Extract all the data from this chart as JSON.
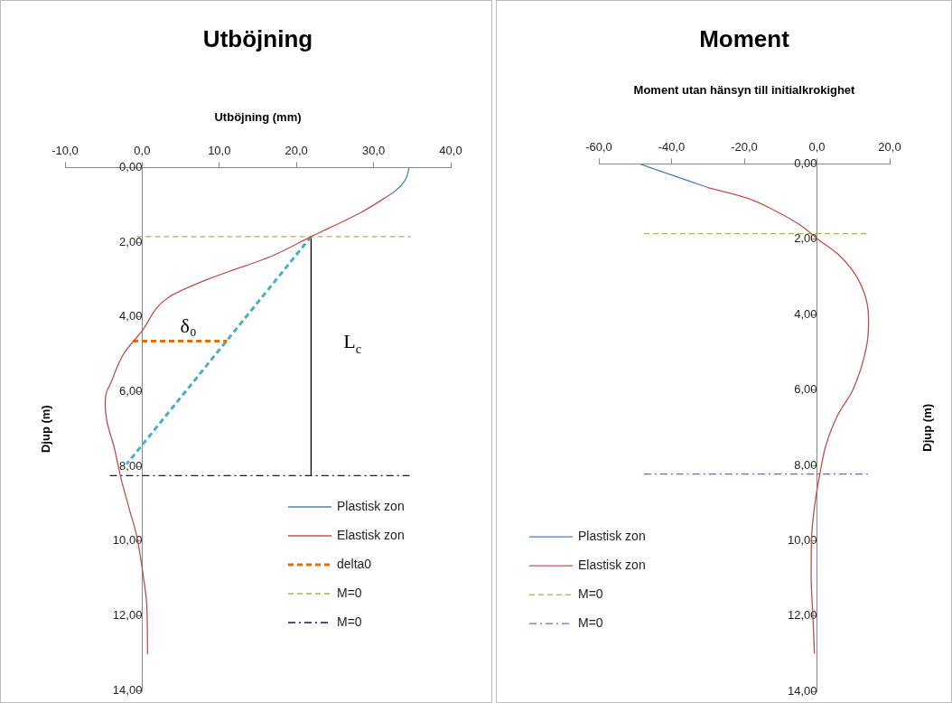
{
  "chart_data": [
    {
      "type": "line",
      "title": "Utböjning",
      "xlabel": "Utböjning (mm)",
      "ylabel": "Djup (m)",
      "xlim": [
        -10,
        40
      ],
      "xticks": [
        {
          "value": -10,
          "label": "-10,0"
        },
        {
          "value": 0,
          "label": "0,0"
        },
        {
          "value": 10,
          "label": "10,0"
        },
        {
          "value": 20,
          "label": "20,0"
        },
        {
          "value": 30,
          "label": "30,0"
        },
        {
          "value": 40,
          "label": "40,0"
        }
      ],
      "ylim": [
        14,
        0
      ],
      "yticks": [
        {
          "value": 0,
          "label": "0,00"
        },
        {
          "value": 2,
          "label": "2,00"
        },
        {
          "value": 4,
          "label": "4,00"
        },
        {
          "value": 6,
          "label": "6,00"
        },
        {
          "value": 8,
          "label": "8,00"
        },
        {
          "value": 10,
          "label": "10,00"
        },
        {
          "value": 12,
          "label": "12,00"
        },
        {
          "value": 14,
          "label": "14,00"
        }
      ],
      "grid": false,
      "legend": "bottom right",
      "marker": "none",
      "series": [
        {
          "name": "Plastisk zon",
          "color": "#4f81bd",
          "line_style": "solid",
          "x": [
            34.6,
            34.2,
            33.5,
            32.5
          ],
          "values": [
            0,
            0.3,
            0.5,
            0.68
          ]
        },
        {
          "name": "Elastisk zon",
          "color": "#c0504d",
          "line_style": "solid",
          "x": [
            32.5,
            28.4,
            21.9,
            16.7,
            8.8,
            3.4,
            -0.1,
            -2.4,
            -4.2,
            -4.6,
            -4.8,
            -4.6,
            -3.6,
            -2.8,
            -1.7,
            -0.7,
            0.1,
            0.6,
            0.7
          ],
          "values": [
            0.68,
            1.2,
            1.85,
            2.38,
            2.97,
            3.48,
            4.4,
            4.99,
            5.83,
            6.0,
            6.3,
            6.76,
            7.52,
            8.28,
            9.12,
            9.87,
            10.88,
            11.72,
            13.03
          ]
        },
        {
          "name": "delta0",
          "color": "#e46c0a",
          "line_style": "dashed",
          "x": [
            -1.2,
            11.0
          ],
          "values": [
            4.65,
            4.65
          ]
        },
        {
          "name": "M=0",
          "color": "#9bbb59",
          "line_style": "dashed",
          "x": [
            -0.7,
            34.8
          ],
          "values": [
            1.85,
            1.85
          ]
        },
        {
          "name": "M=0",
          "color": "#1f1a3a",
          "line_style": "dashdot",
          "x": [
            -4.2,
            34.8
          ],
          "values": [
            8.25,
            8.25
          ]
        },
        {
          "color": "#4bacc6",
          "line_style": "dashed",
          "x": [
            21.9,
            -2.0
          ],
          "values": [
            1.85,
            7.94
          ]
        },
        {
          "color": "#000000",
          "line_style": "solid",
          "x": [
            21.9,
            21.9
          ],
          "values": [
            1.85,
            8.25
          ]
        }
      ],
      "annotations": [
        "δ₀",
        "L$_{c}$"
      ]
    },
    {
      "type": "line",
      "title": "Moment",
      "xlabel": "Moment utan hänsyn till initialkrokighet",
      "ylabel": "Djup (m)",
      "xlim": [
        -60,
        20
      ],
      "xticks": [
        {
          "value": -60,
          "label": "-60,0"
        },
        {
          "value": -40,
          "label": "-40,0"
        },
        {
          "value": -20,
          "label": "-20,0"
        },
        {
          "value": 0,
          "label": "0,0"
        },
        {
          "value": 20,
          "label": "20,0"
        }
      ],
      "ylim": [
        14,
        0
      ],
      "yticks": [
        {
          "value": 0,
          "label": "0,00"
        },
        {
          "value": 2,
          "label": "2,00"
        },
        {
          "value": 4,
          "label": "4,00"
        },
        {
          "value": 6,
          "label": "6,00"
        },
        {
          "value": 8,
          "label": "8,00"
        },
        {
          "value": 10,
          "label": "10,00"
        },
        {
          "value": 12,
          "label": "12,00"
        },
        {
          "value": 14,
          "label": "14,00"
        }
      ],
      "grid": false,
      "legend": "bottom left",
      "marker": "none",
      "series": [
        {
          "name": "Plastisk zon",
          "color": "#4f81bd",
          "line_style": "solid",
          "x": [
            -48.8,
            -30.2
          ],
          "values": [
            0,
            0.62
          ]
        },
        {
          "name": "Elastisk zon",
          "color": "#c0504d",
          "line_style": "solid",
          "x": [
            -30.2,
            -19.1,
            -10.8,
            -4.2,
            0,
            5.7,
            10.7,
            13.6,
            14.2,
            13.6,
            9.8,
            5.7,
            2.4,
            0.8,
            -0.5,
            -1.5,
            -1.6,
            -1.1,
            -0.7
          ],
          "values": [
            0.62,
            0.91,
            1.28,
            1.65,
            1.98,
            2.39,
            2.96,
            3.62,
            4.2,
            4.86,
            6.01,
            6.67,
            7.49,
            8.23,
            8.97,
            9.96,
            10.95,
            12.02,
            13.0
          ]
        },
        {
          "name": "M=0",
          "color": "#9bbb59",
          "line_style": "dashed",
          "x": [
            -47.6,
            14.0
          ],
          "values": [
            1.85,
            1.85
          ]
        },
        {
          "name": "M=0",
          "color": "#8064a2",
          "line_style": "dashdot",
          "x": [
            -47.6,
            14.0
          ],
          "values": [
            8.23,
            8.23
          ]
        }
      ]
    }
  ]
}
